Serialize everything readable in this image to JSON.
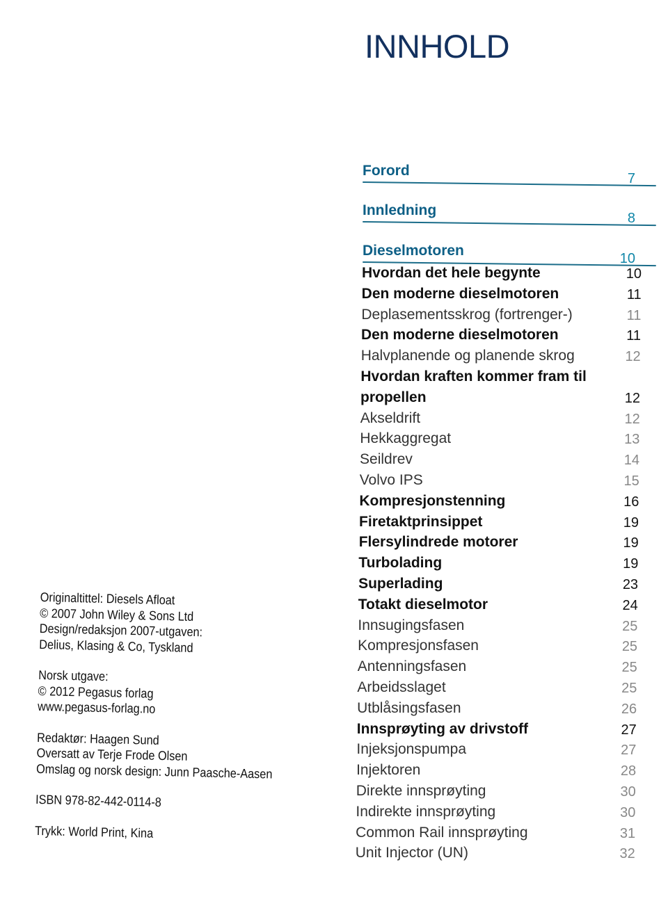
{
  "title": "INNHOLD",
  "sections": [
    {
      "label": "Forord",
      "page": "7"
    },
    {
      "label": "Innledning",
      "page": "8"
    },
    {
      "label": "Dieselmotoren",
      "page": "10"
    }
  ],
  "entries": [
    {
      "text": "Hvordan det hele begynte",
      "page": "10",
      "bold": true
    },
    {
      "text": "Den moderne dieselmotoren",
      "page": "11",
      "bold": true
    },
    {
      "text": "Deplasementsskrog (fortrenger-)",
      "page": "11",
      "bold": false
    },
    {
      "text": "Den moderne dieselmotoren",
      "page": "11",
      "bold": true
    },
    {
      "text": "Halvplanende og planende skrog",
      "page": "12",
      "bold": false
    },
    {
      "text": "Hvordan kraften kommer fram til",
      "page": "",
      "bold": true
    },
    {
      "text": "propellen",
      "page": "12",
      "bold": true
    },
    {
      "text": "Akseldrift",
      "page": "12",
      "bold": false
    },
    {
      "text": "Hekkaggregat",
      "page": "13",
      "bold": false
    },
    {
      "text": "Seildrev",
      "page": "14",
      "bold": false
    },
    {
      "text": "Volvo IPS",
      "page": "15",
      "bold": false
    },
    {
      "text": "Kompresjonstenning",
      "page": "16",
      "bold": true
    },
    {
      "text": "Firetaktprinsippet",
      "page": "19",
      "bold": true
    },
    {
      "text": "Flersylindrede motorer",
      "page": "19",
      "bold": true
    },
    {
      "text": "Turbolading",
      "page": "19",
      "bold": true
    },
    {
      "text": "Superlading",
      "page": "23",
      "bold": true
    },
    {
      "text": "Totakt dieselmotor",
      "page": "24",
      "bold": true
    },
    {
      "text": "Innsugingsfasen",
      "page": "25",
      "bold": false
    },
    {
      "text": "Kompresjonsfasen",
      "page": "25",
      "bold": false
    },
    {
      "text": "Antenningsfasen",
      "page": "25",
      "bold": false
    },
    {
      "text": "Arbeidsslaget",
      "page": "25",
      "bold": false
    },
    {
      "text": "Utblåsingsfasen",
      "page": "26",
      "bold": false
    },
    {
      "text": "Innsprøyting av drivstoff",
      "page": "27",
      "bold": true
    },
    {
      "text": "Injeksjonspumpa",
      "page": "27",
      "bold": false
    },
    {
      "text": "Injektoren",
      "page": "28",
      "bold": false
    },
    {
      "text": "Direkte innsprøyting",
      "page": "30",
      "bold": false
    },
    {
      "text": "Indirekte innsprøyting",
      "page": "30",
      "bold": false
    },
    {
      "text": "Common Rail innsprøyting",
      "page": "31",
      "bold": false
    },
    {
      "text": "Unit Injector (UN)",
      "page": "32",
      "bold": false
    }
  ],
  "colophon": {
    "block1": [
      "Originaltittel: Diesels Afloat",
      "© 2007 John Wiley & Sons Ltd",
      "Design/redaksjon 2007-utgaven:",
      "Delius, Klasing & Co, Tyskland"
    ],
    "block2": [
      "Norsk utgave:",
      "© 2012 Pegasus forlag",
      "www.pegasus-forlag.no"
    ],
    "block3": [
      "Redaktør: Haagen Sund",
      "Oversatt av Terje Frode Olsen",
      "Omslag og norsk design: Junn Paasche-Aasen"
    ],
    "isbn": "ISBN 978-82-442-0114-8",
    "print": "Trykk: World Print, Kina"
  },
  "colors": {
    "title": "#13315f",
    "section": "#0d5f86",
    "section_page": "#0f86a8"
  }
}
